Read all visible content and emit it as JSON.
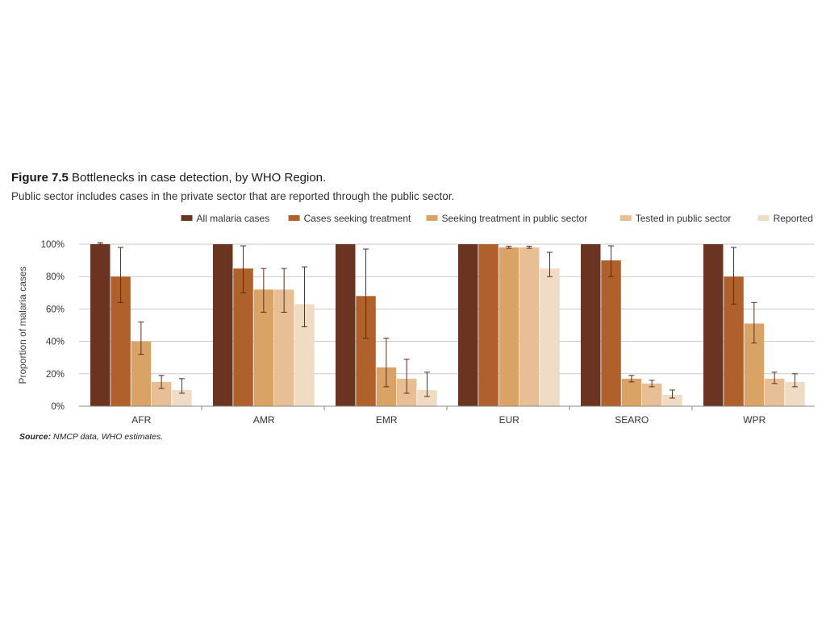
{
  "figure": {
    "number": "Figure 7.5",
    "title": "Bottlenecks in case detection, by WHO Region.",
    "subtitle": "Public sector includes cases in the private sector that are reported through the public sector.",
    "source_label": "Source:",
    "source_text": "NMCP data, WHO estimates."
  },
  "chart_data": {
    "type": "bar",
    "ylabel": "Proportion of malaria cases",
    "xlabel": "",
    "ylim": [
      0,
      100
    ],
    "yticks": [
      "0%",
      "20%",
      "40%",
      "60%",
      "80%",
      "100%"
    ],
    "yticks_values": [
      0,
      20,
      40,
      60,
      80,
      100
    ],
    "grid": true,
    "legend_position": "top-right",
    "categories": [
      "AFR",
      "AMR",
      "EMR",
      "EUR",
      "SEARO",
      "WPR"
    ],
    "series": [
      {
        "name": "All malaria cases",
        "color": "#6b3420",
        "values": [
          100,
          100,
          100,
          100,
          100,
          100
        ],
        "err_low": [
          null,
          null,
          null,
          null,
          null,
          null
        ],
        "err_high": [
          101,
          null,
          null,
          null,
          null,
          null
        ]
      },
      {
        "name": "Cases seeking treatment",
        "color": "#b0602b",
        "values": [
          80,
          85,
          68,
          100,
          90,
          80
        ],
        "err_low": [
          64,
          70,
          42,
          null,
          80,
          63
        ],
        "err_high": [
          98,
          99,
          97,
          null,
          99,
          98
        ]
      },
      {
        "name": "Seeking treatment in public sector",
        "color": "#d9a366",
        "values": [
          40,
          72,
          24,
          98,
          17,
          51
        ],
        "err_low": [
          32,
          58,
          12,
          97.5,
          15,
          39
        ],
        "err_high": [
          52,
          85,
          42,
          98.8,
          19,
          64
        ]
      },
      {
        "name": "Tested in public sector",
        "color": "#e8bf94",
        "values": [
          15,
          72,
          17,
          98,
          14,
          17
        ],
        "err_low": [
          11,
          58,
          8,
          97.5,
          12,
          14
        ],
        "err_high": [
          19,
          85,
          29,
          98.8,
          16,
          21
        ]
      },
      {
        "name": "Reported",
        "color": "#f0dcc5",
        "values": [
          10,
          63,
          10,
          85,
          7,
          15
        ],
        "err_low": [
          8,
          49,
          6,
          80,
          5,
          12
        ],
        "err_high": [
          17,
          86,
          21,
          95,
          10,
          20
        ]
      }
    ]
  }
}
